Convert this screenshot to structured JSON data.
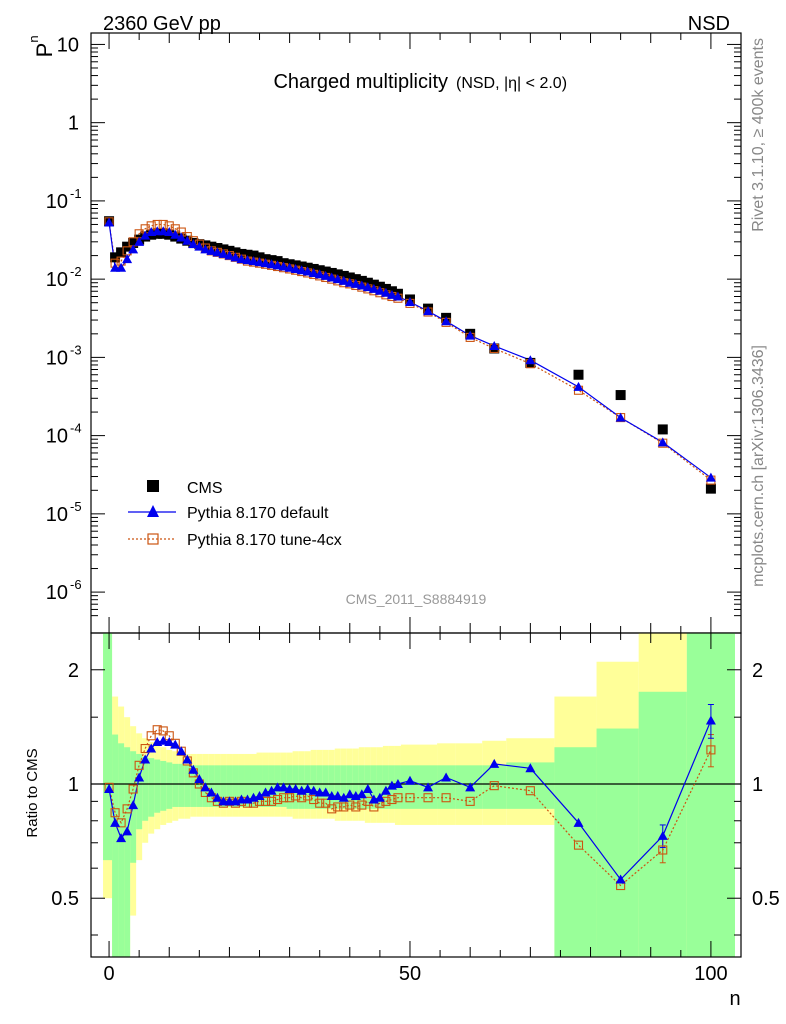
{
  "header": {
    "left": "2360 GeV pp",
    "right": "NSD"
  },
  "side_texts": {
    "rivet": "Rivet 3.1.10, ≥ 400k events",
    "mcplots": "mcplots.cern.ch [arXiv:1306.3436]"
  },
  "chart_data": [
    {
      "type": "scatter",
      "title": "Charged multiplicity",
      "subtitle": "(NSD, |η| < 2.0)",
      "watermark": "CMS_2011_S8884919",
      "ylabel": "P",
      "ylabel_sub": "n",
      "yscale": "log",
      "ylim": [
        3e-07,
        14
      ],
      "xlim": [
        -3,
        105
      ],
      "y_ticks": [
        {
          "base": "10",
          "exp": "-6",
          "value": 1e-06
        },
        {
          "base": "10",
          "exp": "-5",
          "value": 1e-05
        },
        {
          "base": "10",
          "exp": "-4",
          "value": 0.0001
        },
        {
          "base": "10",
          "exp": "-3",
          "value": 0.001
        },
        {
          "base": "10",
          "exp": "-2",
          "value": 0.01
        },
        {
          "base": "10",
          "exp": "-1",
          "value": 0.1
        },
        {
          "base": "1",
          "exp": "",
          "value": 1
        },
        {
          "base": "10",
          "exp": "",
          "value": 10
        }
      ],
      "legend": [
        "CMS",
        "Pythia 8.170 default",
        "Pythia 8.170 tune-4cx"
      ],
      "colors": {
        "data": "#000000",
        "default": "#0000ee",
        "tune": "#cc5511"
      },
      "series": [
        {
          "name": "CMS",
          "x": [
            0,
            1,
            2,
            3,
            4,
            5,
            6,
            7,
            8,
            9,
            10,
            11,
            12,
            13,
            14,
            15,
            16,
            17,
            18,
            19,
            20,
            21,
            22,
            23,
            24,
            25,
            26,
            27,
            28,
            29,
            30,
            31,
            32,
            33,
            34,
            35,
            36,
            37,
            38,
            39,
            40,
            41,
            42,
            43,
            44,
            45,
            46,
            47,
            48,
            50,
            53,
            56,
            60,
            64,
            70,
            78,
            85,
            92,
            100
          ],
          "y": [
            0.055,
            0.019,
            0.022,
            0.026,
            0.029,
            0.032,
            0.035,
            0.037,
            0.038,
            0.038,
            0.037,
            0.035,
            0.033,
            0.031,
            0.029,
            0.028,
            0.027,
            0.026,
            0.025,
            0.024,
            0.023,
            0.022,
            0.021,
            0.0205,
            0.02,
            0.019,
            0.018,
            0.0175,
            0.017,
            0.016,
            0.0155,
            0.015,
            0.0145,
            0.014,
            0.0135,
            0.013,
            0.0125,
            0.012,
            0.0115,
            0.011,
            0.0105,
            0.01,
            0.0095,
            0.009,
            0.0085,
            0.008,
            0.0075,
            0.007,
            0.0065,
            0.0055,
            0.0042,
            0.0032,
            0.002,
            0.0013,
            0.00085,
            0.0006,
            0.00033,
            0.00012,
            2.1e-05
          ]
        },
        {
          "name": "Pythia 8.170 default",
          "x": [
            0,
            1,
            2,
            3,
            4,
            5,
            6,
            7,
            8,
            9,
            10,
            11,
            12,
            13,
            14,
            15,
            16,
            17,
            18,
            19,
            20,
            21,
            22,
            23,
            24,
            25,
            26,
            27,
            28,
            29,
            30,
            31,
            32,
            33,
            34,
            35,
            36,
            37,
            38,
            39,
            40,
            41,
            42,
            43,
            44,
            45,
            46,
            47,
            48,
            50,
            53,
            56,
            60,
            64,
            70,
            78,
            85,
            92,
            100
          ],
          "y": [
            0.053,
            0.014,
            0.014,
            0.018,
            0.024,
            0.03,
            0.036,
            0.04,
            0.041,
            0.041,
            0.04,
            0.037,
            0.034,
            0.031,
            0.028,
            0.026,
            0.024,
            0.023,
            0.022,
            0.021,
            0.02,
            0.019,
            0.018,
            0.0175,
            0.017,
            0.0165,
            0.016,
            0.0155,
            0.015,
            0.0145,
            0.014,
            0.0135,
            0.013,
            0.0125,
            0.012,
            0.0115,
            0.011,
            0.0105,
            0.01,
            0.0095,
            0.009,
            0.0087,
            0.0083,
            0.0079,
            0.0075,
            0.0071,
            0.0067,
            0.0063,
            0.006,
            0.0051,
            0.0039,
            0.0029,
            0.0019,
            0.0014,
            0.00092,
            0.00042,
            0.00017,
            8.2e-05,
            2.9e-05
          ]
        },
        {
          "name": "Pythia 8.170 tune-4cx",
          "x": [
            0,
            1,
            2,
            3,
            4,
            5,
            6,
            7,
            8,
            9,
            10,
            11,
            12,
            13,
            14,
            15,
            16,
            17,
            18,
            19,
            20,
            21,
            22,
            23,
            24,
            25,
            26,
            27,
            28,
            29,
            30,
            31,
            32,
            33,
            34,
            35,
            36,
            37,
            38,
            39,
            40,
            41,
            42,
            43,
            44,
            45,
            46,
            47,
            48,
            50,
            53,
            56,
            60,
            64,
            70,
            78,
            85,
            92,
            100
          ],
          "y": [
            0.054,
            0.016,
            0.017,
            0.023,
            0.03,
            0.038,
            0.044,
            0.048,
            0.05,
            0.05,
            0.048,
            0.044,
            0.04,
            0.035,
            0.031,
            0.028,
            0.025,
            0.023,
            0.022,
            0.021,
            0.02,
            0.019,
            0.018,
            0.017,
            0.0165,
            0.016,
            0.0155,
            0.015,
            0.0145,
            0.014,
            0.0135,
            0.013,
            0.0125,
            0.012,
            0.0115,
            0.011,
            0.0105,
            0.01,
            0.0095,
            0.009,
            0.0087,
            0.0083,
            0.0079,
            0.0075,
            0.0071,
            0.0067,
            0.0063,
            0.006,
            0.0057,
            0.0049,
            0.0038,
            0.0028,
            0.0018,
            0.0013,
            0.00083,
            0.00038,
            0.00017,
            8e-05,
            2.7e-05
          ]
        }
      ]
    },
    {
      "type": "scatter",
      "ylabel": "Ratio to CMS",
      "yscale": "log",
      "ylim": [
        0.35,
        2.5
      ],
      "xlabel": "n",
      "xlim": [
        -3,
        105
      ],
      "x_ticks": [
        "0",
        "50",
        "100"
      ],
      "x_tick_values": [
        0,
        50,
        100
      ],
      "y_ticks": [
        "0.5",
        "1",
        "2"
      ],
      "y_tick_values": [
        0.5,
        1,
        2
      ],
      "bands": {
        "edges": [
          -1,
          0.5,
          1.5,
          2.5,
          3.5,
          4.5,
          5.5,
          6.5,
          7.5,
          8.5,
          9.5,
          10.5,
          11.5,
          12.5,
          13.5,
          14.5,
          15.5,
          16.5,
          17.5,
          18.5,
          19.5,
          20.5,
          21.5,
          22.5,
          23.5,
          24.5,
          25.5,
          26.5,
          27.5,
          28.5,
          29.5,
          30.5,
          31.5,
          32.5,
          33.5,
          34.5,
          35.5,
          36.5,
          37.5,
          38.5,
          39.5,
          40.5,
          41.5,
          42.5,
          43.5,
          44.5,
          45.5,
          46.5,
          47.5,
          48.5,
          51.5,
          54.5,
          57.5,
          62,
          66,
          74,
          81,
          88,
          96,
          104
        ],
        "inner_lo": [
          0.63,
          0.35,
          0.35,
          0.35,
          0.62,
          0.76,
          0.8,
          0.82,
          0.84,
          0.85,
          0.86,
          0.87,
          0.87,
          0.87,
          0.87,
          0.87,
          0.87,
          0.87,
          0.87,
          0.87,
          0.87,
          0.87,
          0.87,
          0.87,
          0.87,
          0.87,
          0.87,
          0.87,
          0.87,
          0.87,
          0.86,
          0.86,
          0.86,
          0.86,
          0.86,
          0.86,
          0.86,
          0.86,
          0.86,
          0.86,
          0.86,
          0.86,
          0.86,
          0.86,
          0.86,
          0.86,
          0.86,
          0.86,
          0.86,
          0.86,
          0.86,
          0.86,
          0.86,
          0.86,
          0.86,
          0.35,
          0.35,
          0.35,
          0.35
        ],
        "inner_hi": [
          2.5,
          1.35,
          1.28,
          1.25,
          1.22,
          1.2,
          1.18,
          1.17,
          1.16,
          1.15,
          1.14,
          1.13,
          1.13,
          1.12,
          1.12,
          1.12,
          1.12,
          1.12,
          1.12,
          1.12,
          1.12,
          1.12,
          1.12,
          1.12,
          1.12,
          1.12,
          1.12,
          1.12,
          1.12,
          1.12,
          1.12,
          1.12,
          1.12,
          1.12,
          1.12,
          1.12,
          1.12,
          1.12,
          1.12,
          1.12,
          1.12,
          1.12,
          1.12,
          1.12,
          1.12,
          1.12,
          1.12,
          1.12,
          1.12,
          1.12,
          1.12,
          1.12,
          1.12,
          1.12,
          1.14,
          1.25,
          1.4,
          1.75,
          2.5
        ],
        "outer_lo": [
          0.5,
          0.35,
          0.35,
          0.35,
          0.45,
          0.63,
          0.7,
          0.74,
          0.76,
          0.78,
          0.79,
          0.8,
          0.81,
          0.81,
          0.82,
          0.82,
          0.82,
          0.82,
          0.82,
          0.82,
          0.82,
          0.82,
          0.82,
          0.82,
          0.82,
          0.82,
          0.82,
          0.82,
          0.82,
          0.82,
          0.82,
          0.81,
          0.81,
          0.81,
          0.81,
          0.81,
          0.81,
          0.81,
          0.8,
          0.8,
          0.8,
          0.8,
          0.8,
          0.79,
          0.79,
          0.79,
          0.79,
          0.79,
          0.78,
          0.78,
          0.78,
          0.78,
          0.78,
          0.78,
          0.78,
          0.35,
          0.35,
          0.35,
          0.35
        ],
        "outer_hi": [
          2.5,
          1.7,
          1.6,
          1.5,
          1.42,
          1.36,
          1.32,
          1.29,
          1.27,
          1.25,
          1.23,
          1.22,
          1.21,
          1.2,
          1.2,
          1.2,
          1.2,
          1.2,
          1.2,
          1.2,
          1.2,
          1.2,
          1.2,
          1.2,
          1.2,
          1.21,
          1.21,
          1.21,
          1.21,
          1.21,
          1.21,
          1.22,
          1.22,
          1.22,
          1.23,
          1.23,
          1.23,
          1.23,
          1.24,
          1.24,
          1.24,
          1.24,
          1.25,
          1.25,
          1.25,
          1.25,
          1.26,
          1.26,
          1.26,
          1.27,
          1.27,
          1.28,
          1.28,
          1.3,
          1.32,
          1.7,
          2.1,
          2.5,
          2.5
        ]
      },
      "series": [
        {
          "name": "Pythia 8.170 default",
          "x": [
            0,
            1,
            2,
            3,
            4,
            5,
            6,
            7,
            8,
            9,
            10,
            11,
            12,
            13,
            14,
            15,
            16,
            17,
            18,
            19,
            20,
            21,
            22,
            23,
            24,
            25,
            26,
            27,
            28,
            29,
            30,
            31,
            32,
            33,
            34,
            35,
            36,
            37,
            38,
            39,
            40,
            41,
            42,
            43,
            44,
            45,
            46,
            47,
            48,
            50,
            53,
            56,
            60,
            64,
            70,
            78,
            85,
            92,
            100
          ],
          "y": [
            0.97,
            0.79,
            0.72,
            0.75,
            0.88,
            1.04,
            1.16,
            1.24,
            1.29,
            1.3,
            1.29,
            1.27,
            1.22,
            1.16,
            1.09,
            1.03,
            0.98,
            0.95,
            0.92,
            0.9,
            0.9,
            0.9,
            0.91,
            0.91,
            0.92,
            0.93,
            0.95,
            0.96,
            0.98,
            0.98,
            0.97,
            0.97,
            0.96,
            0.97,
            0.96,
            0.95,
            0.95,
            0.93,
            0.93,
            0.92,
            0.94,
            0.93,
            0.94,
            0.97,
            0.91,
            0.92,
            0.96,
            0.99,
            1.0,
            1.02,
            0.98,
            1.04,
            0.98,
            1.13,
            1.1,
            0.79,
            0.56,
            0.73,
            1.47
          ],
          "err": [
            0.02,
            0.02,
            0.02,
            0.02,
            0.02,
            0.02,
            0.02,
            0.02,
            0.02,
            0.02,
            0.02,
            0.02,
            0.02,
            0.02,
            0.02,
            0.02,
            0.02,
            0.02,
            0.02,
            0.02,
            0.02,
            0.02,
            0.02,
            0.02,
            0.02,
            0.02,
            0.02,
            0.02,
            0.02,
            0.02,
            0.02,
            0.02,
            0.02,
            0.02,
            0.02,
            0.02,
            0.02,
            0.02,
            0.02,
            0.02,
            0.02,
            0.02,
            0.02,
            0.02,
            0.02,
            0.02,
            0.02,
            0.02,
            0.02,
            0.02,
            0.02,
            0.02,
            0.02,
            0.02,
            0.02,
            0.02,
            0.03,
            0.05,
            0.15
          ]
        },
        {
          "name": "Pythia 8.170 tune-4cx",
          "x": [
            0,
            1,
            2,
            3,
            4,
            5,
            6,
            7,
            8,
            9,
            10,
            11,
            12,
            13,
            14,
            15,
            16,
            17,
            18,
            19,
            20,
            21,
            22,
            23,
            24,
            25,
            26,
            27,
            28,
            29,
            30,
            31,
            32,
            33,
            34,
            35,
            36,
            37,
            38,
            39,
            40,
            41,
            42,
            43,
            44,
            45,
            46,
            47,
            48,
            50,
            53,
            56,
            60,
            64,
            70,
            78,
            85,
            92,
            100
          ],
          "y": [
            0.98,
            0.84,
            0.79,
            0.86,
            0.97,
            1.12,
            1.24,
            1.34,
            1.39,
            1.38,
            1.34,
            1.28,
            1.22,
            1.15,
            1.07,
            1.0,
            0.95,
            0.92,
            0.9,
            0.89,
            0.9,
            0.89,
            0.9,
            0.89,
            0.89,
            0.9,
            0.9,
            0.9,
            0.91,
            0.92,
            0.92,
            0.93,
            0.92,
            0.93,
            0.91,
            0.89,
            0.89,
            0.86,
            0.87,
            0.87,
            0.88,
            0.87,
            0.88,
            0.9,
            0.87,
            0.89,
            0.9,
            0.91,
            0.92,
            0.92,
            0.92,
            0.92,
            0.9,
            0.99,
            0.96,
            0.69,
            0.54,
            0.67,
            1.23
          ],
          "err": [
            0.02,
            0.02,
            0.02,
            0.02,
            0.02,
            0.02,
            0.02,
            0.02,
            0.02,
            0.02,
            0.02,
            0.02,
            0.02,
            0.02,
            0.02,
            0.02,
            0.02,
            0.02,
            0.02,
            0.02,
            0.02,
            0.02,
            0.02,
            0.02,
            0.02,
            0.02,
            0.02,
            0.02,
            0.02,
            0.02,
            0.02,
            0.02,
            0.02,
            0.02,
            0.02,
            0.02,
            0.02,
            0.02,
            0.02,
            0.02,
            0.02,
            0.02,
            0.02,
            0.02,
            0.02,
            0.02,
            0.02,
            0.02,
            0.02,
            0.02,
            0.02,
            0.02,
            0.02,
            0.02,
            0.02,
            0.02,
            0.03,
            0.05,
            0.12
          ]
        }
      ]
    }
  ]
}
